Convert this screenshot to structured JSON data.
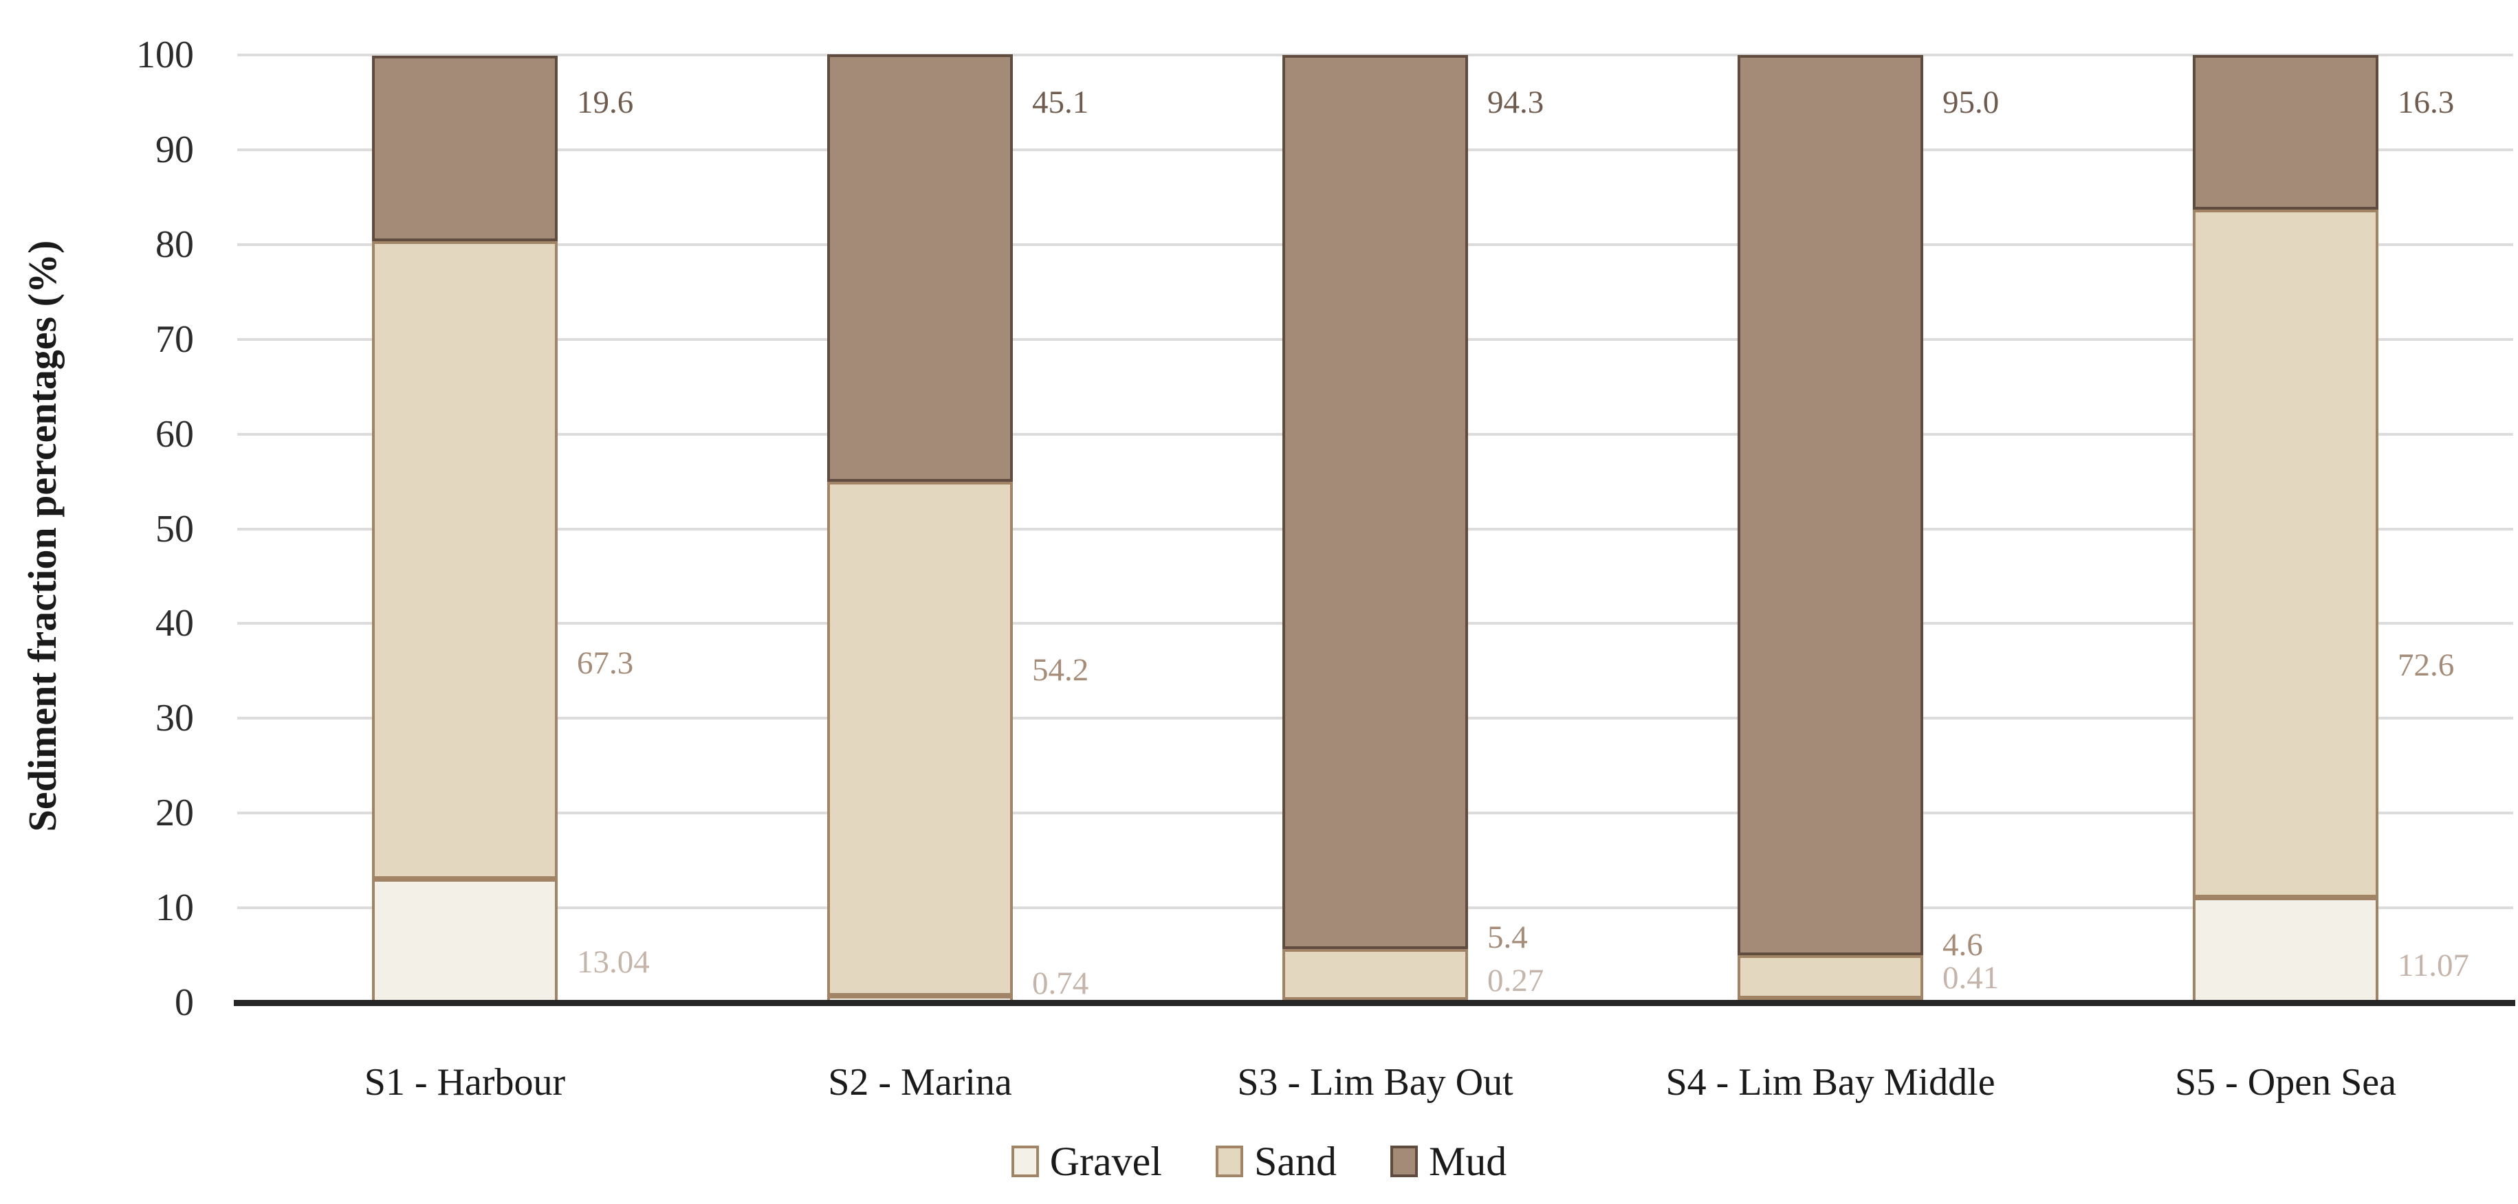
{
  "chart_data": {
    "type": "bar",
    "stacked": true,
    "title": "",
    "ylabel": "Sediment fraction percentages (%)",
    "xlabel": "",
    "ylim": [
      0,
      100
    ],
    "yticks": [
      0,
      10,
      20,
      30,
      40,
      50,
      60,
      70,
      80,
      90,
      100
    ],
    "grid": "horizontal",
    "legend_position": "bottom-center",
    "categories": [
      "S1 - Harbour",
      "S2 - Marina",
      "S3 - Lim Bay Out",
      "S4 - Lim Bay Middle",
      "S5 - Open Sea"
    ],
    "series": [
      {
        "name": "Gravel",
        "values": [
          13.04,
          0.74,
          0.27,
          0.41,
          11.07
        ],
        "value_labels": [
          "13.04",
          "0.74",
          "0.27",
          "0.41",
          "11.07"
        ],
        "label_y_pct": [
          4.3,
          2.0,
          2.3,
          2.6,
          3.9
        ],
        "fill": "#f3f0e8",
        "border": "#a08465",
        "label_color": "#c4b4a9"
      },
      {
        "name": "Sand",
        "values": [
          67.3,
          54.2,
          5.4,
          4.6,
          72.6
        ],
        "value_labels": [
          "67.3",
          "54.2",
          "5.4",
          "4.6",
          "72.6"
        ],
        "label_y_pct": [
          35.8,
          35.1,
          6.9,
          6.1,
          35.6
        ],
        "fill": "#e4d7bf",
        "border": "#a08465",
        "label_color": "#a48c78"
      },
      {
        "name": "Mud",
        "values": [
          19.6,
          45.1,
          94.3,
          95.0,
          16.3
        ],
        "value_labels": [
          "19.6",
          "45.1",
          "94.3",
          "95.0",
          "16.3"
        ],
        "label_y_pct": [
          95.0,
          95.0,
          95.0,
          95.0,
          95.0
        ],
        "fill": "#a48b77",
        "border": "#5f4c3e",
        "label_color": "#6f5c4e"
      }
    ],
    "legend_entries": [
      "Gravel",
      "Sand",
      "Mud"
    ],
    "colors": {
      "gridline": "#dcdcdc",
      "axis_line": "#262626",
      "tick_text": "#2b2b2b",
      "category_text": "#1a1a1a"
    }
  }
}
